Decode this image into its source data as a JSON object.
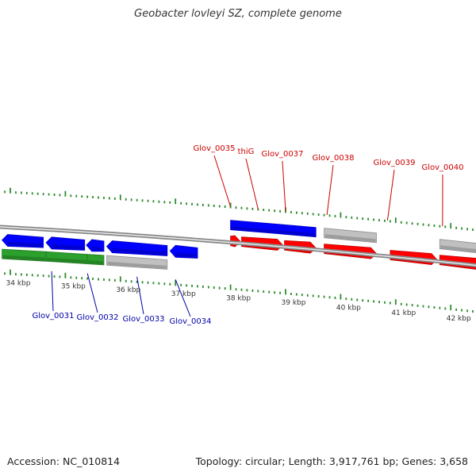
{
  "title": "Geobacter lovleyi SZ, complete genome",
  "footer": {
    "accession": "Accession: NC_010814",
    "summary": "Topology: circular; Length: 3,917,761 bp; Genes: 3,658"
  },
  "colors": {
    "forward_cds": "#ff0000",
    "reverse_cds": "#0000ff",
    "other_feature": "#c0c0c0",
    "rna_track": "#2ca02c",
    "ticks": "#2e8b2e",
    "backbone": "#888888"
  },
  "ticks": {
    "labels": [
      "34 kbp",
      "35 kbp",
      "36 kbp",
      "37 kbp",
      "38 kbp",
      "39 kbp",
      "40 kbp",
      "41 kbp",
      "42 kbp"
    ]
  },
  "genes_top": [
    {
      "name": "Glov_0035",
      "kbp": 38.0
    },
    {
      "name": "thiG",
      "kbp": 38.5
    },
    {
      "name": "Glov_0037",
      "kbp": 39.0
    },
    {
      "name": "Glov_0038",
      "kbp": 39.75
    },
    {
      "name": "Glov_0039",
      "kbp": 40.85
    },
    {
      "name": "Glov_0040",
      "kbp": 41.85
    }
  ],
  "genes_bottom": [
    {
      "name": "Glov_0031",
      "kbp": 34.75
    },
    {
      "name": "Glov_0032",
      "kbp": 35.4
    },
    {
      "name": "Glov_0033",
      "kbp": 36.3
    },
    {
      "name": "Glov_0034",
      "kbp": 37.0
    }
  ],
  "features": [
    {
      "track": "outer",
      "color": "reverse_cds",
      "start": 38.0,
      "end": 38.95
    },
    {
      "track": "outer",
      "color": "reverse_cds",
      "start": 38.95,
      "end": 39.55
    },
    {
      "track": "outer",
      "color": "other_feature",
      "start": 39.7,
      "end": 40.65
    },
    {
      "track": "outer",
      "color": "other_feature",
      "start": 41.8,
      "end": 43.0
    },
    {
      "track": "inner",
      "color": "forward_cds",
      "start": 38.0,
      "end": 38.18,
      "dir": 1
    },
    {
      "track": "inner",
      "color": "forward_cds",
      "start": 38.2,
      "end": 38.95,
      "dir": 1
    },
    {
      "track": "inner",
      "color": "forward_cds",
      "start": 38.98,
      "end": 39.55,
      "dir": 1
    },
    {
      "track": "inner",
      "color": "forward_cds",
      "start": 39.7,
      "end": 40.65,
      "dir": 1
    },
    {
      "track": "inner",
      "color": "forward_cds",
      "start": 40.9,
      "end": 41.75,
      "dir": 1
    },
    {
      "track": "inner",
      "color": "forward_cds",
      "start": 41.8,
      "end": 43.0,
      "dir": 1
    },
    {
      "track": "below",
      "color": "reverse_cds",
      "start": 33.85,
      "end": 34.6,
      "dir": -1
    },
    {
      "track": "below",
      "color": "reverse_cds",
      "start": 34.65,
      "end": 35.35,
      "dir": -1
    },
    {
      "track": "below",
      "color": "reverse_cds",
      "start": 35.38,
      "end": 35.7,
      "dir": -1
    },
    {
      "track": "below",
      "color": "reverse_cds",
      "start": 35.75,
      "end": 36.85,
      "dir": -1
    },
    {
      "track": "below",
      "color": "reverse_cds",
      "start": 36.9,
      "end": 37.4,
      "dir": -1
    },
    {
      "track": "bottom",
      "color": "rna_track",
      "start": 33.85,
      "end": 34.65
    },
    {
      "track": "bottom",
      "color": "rna_track",
      "start": 34.65,
      "end": 35.4
    },
    {
      "track": "bottom",
      "color": "rna_track",
      "start": 35.4,
      "end": 35.7
    },
    {
      "track": "bottom",
      "color": "other_feature",
      "start": 35.75,
      "end": 36.85
    }
  ]
}
